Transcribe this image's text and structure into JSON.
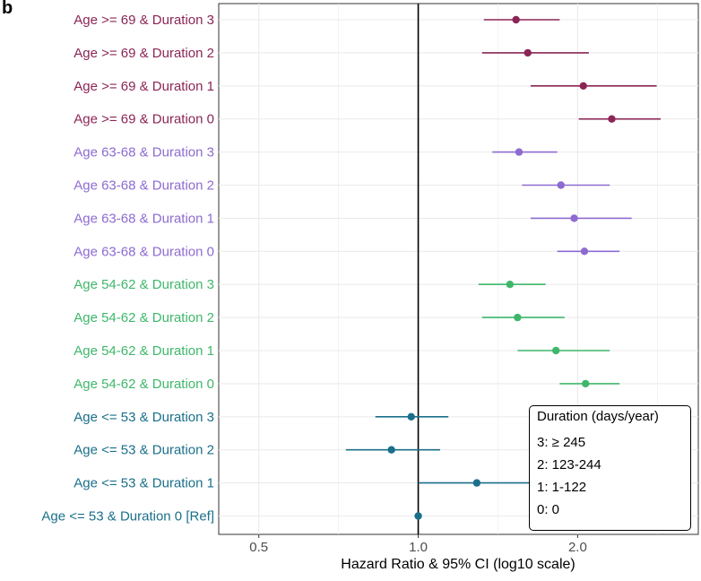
{
  "panel_label": "b",
  "colors": {
    "age_ge_69": "#8b2556",
    "age_63_68": "#8d6bd0",
    "age_54_62": "#3fb76b",
    "age_le_53": "#1b6f8a",
    "ref_line": "#000000",
    "grid": "#ebebeb"
  },
  "chart_data": {
    "type": "forest",
    "xlabel": "Hazard Ratio & 95% CI (log10 scale)",
    "x_scale": "log10",
    "xlim": [
      0.42,
      3.38
    ],
    "x_ticks": [
      {
        "value": 0.5,
        "label": "0.5"
      },
      {
        "value": 1.0,
        "label": "1.0"
      },
      {
        "value": 2.0,
        "label": "2.0"
      }
    ],
    "reference_line": 1.0,
    "rows": [
      {
        "label": "Age >= 69 & Duration 3",
        "group": "age_ge_69",
        "hr": 1.53,
        "lo": 1.33,
        "hi": 1.85
      },
      {
        "label": "Age >= 69 & Duration 2",
        "group": "age_ge_69",
        "hr": 1.61,
        "lo": 1.32,
        "hi": 2.1
      },
      {
        "label": "Age >= 69 & Duration 1",
        "group": "age_ge_69",
        "hr": 2.05,
        "lo": 1.63,
        "hi": 2.82
      },
      {
        "label": "Age >= 69 & Duration 0",
        "group": "age_ge_69",
        "hr": 2.32,
        "lo": 2.01,
        "hi": 2.87
      },
      {
        "label": "Age 63-68 & Duration 3",
        "group": "age_63_68",
        "hr": 1.55,
        "lo": 1.38,
        "hi": 1.83
      },
      {
        "label": "Age 63-68 & Duration 2",
        "group": "age_63_68",
        "hr": 1.86,
        "lo": 1.57,
        "hi": 2.3
      },
      {
        "label": "Age 63-68 & Duration 1",
        "group": "age_63_68",
        "hr": 1.97,
        "lo": 1.63,
        "hi": 2.53
      },
      {
        "label": "Age 63-68 & Duration 0",
        "group": "age_63_68",
        "hr": 2.06,
        "lo": 1.83,
        "hi": 2.4
      },
      {
        "label": "Age 54-62 & Duration 3",
        "group": "age_54_62",
        "hr": 1.49,
        "lo": 1.3,
        "hi": 1.74
      },
      {
        "label": "Age 54-62 & Duration 2",
        "group": "age_54_62",
        "hr": 1.54,
        "lo": 1.32,
        "hi": 1.89
      },
      {
        "label": "Age 54-62 & Duration 1",
        "group": "age_54_62",
        "hr": 1.82,
        "lo": 1.54,
        "hi": 2.3
      },
      {
        "label": "Age 54-62 & Duration 0",
        "group": "age_54_62",
        "hr": 2.07,
        "lo": 1.85,
        "hi": 2.4
      },
      {
        "label": "Age <= 53 & Duration 3",
        "group": "age_le_53",
        "hr": 0.97,
        "lo": 0.83,
        "hi": 1.14
      },
      {
        "label": "Age <= 53 & Duration 2",
        "group": "age_le_53",
        "hr": 0.89,
        "lo": 0.73,
        "hi": 1.1
      },
      {
        "label": "Age <= 53 & Duration 1",
        "group": "age_le_53",
        "hr": 1.29,
        "lo": 1.0,
        "hi": 1.66
      },
      {
        "label": "Age <= 53 & Duration 0 [Ref]",
        "group": "age_le_53",
        "hr": 1.0,
        "lo": 1.0,
        "hi": 1.0
      }
    ],
    "legend": {
      "position": "bottom-right",
      "title": "Duration (days/year)",
      "entries": [
        "3: ≥ 245",
        "2: 123-244",
        "1: 1-122",
        "0: 0"
      ]
    }
  }
}
